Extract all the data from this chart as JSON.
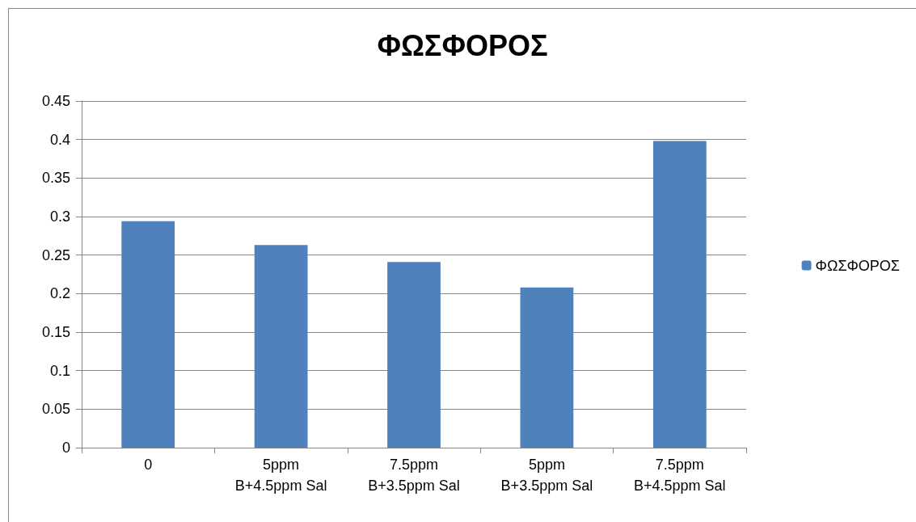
{
  "chart_data": {
    "type": "bar",
    "title": "ΦΩΣΦΟΡΟΣ",
    "categories": [
      "0",
      "5ppm\nB+4.5ppm Sal",
      "7.5ppm\nB+3.5ppm Sal",
      "5ppm\nB+3.5ppm Sal",
      "7.5ppm\nB+4.5ppm Sal"
    ],
    "series": [
      {
        "name": "ΦΩΣΦΟΡΟΣ",
        "color": "#4f81bd",
        "values": [
          0.294,
          0.263,
          0.241,
          0.208,
          0.398
        ]
      }
    ],
    "ylim": [
      0,
      0.45
    ],
    "yticks": [
      0,
      0.05,
      0.1,
      0.15,
      0.2,
      0.25,
      0.3,
      0.35,
      0.4,
      0.45
    ],
    "grid": "y",
    "legend": "right"
  }
}
